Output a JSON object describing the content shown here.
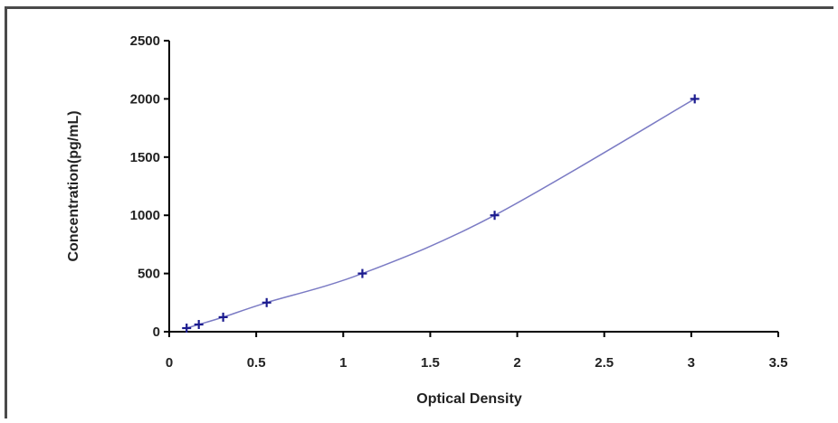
{
  "chart_data": {
    "type": "scatter",
    "title": "",
    "xlabel": "Optical Density",
    "ylabel": "Concentration(pg/mL)",
    "xlim": [
      0,
      3.5
    ],
    "ylim": [
      0,
      2500
    ],
    "x_ticks": [
      "0",
      "0.5",
      "1",
      "1.5",
      "2",
      "2.5",
      "3",
      "3.5"
    ],
    "y_ticks": [
      "0",
      "500",
      "1000",
      "1500",
      "2000",
      "2500"
    ],
    "grid": false,
    "legend": "none",
    "series": [
      {
        "x": [
          0.1,
          0.17,
          0.31,
          0.56,
          1.11,
          1.87,
          3.02
        ],
        "y": [
          31,
          62,
          125,
          250,
          500,
          1000,
          2000
        ],
        "marker": "+",
        "color": "#1b1b8f",
        "line_color": "#7b7bc4",
        "fit": "smooth"
      }
    ]
  }
}
